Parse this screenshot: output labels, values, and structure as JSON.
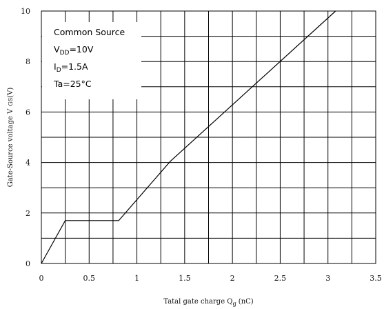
{
  "chart_data": {
    "type": "line",
    "xlabel": "Tatal gate charge  Q",
    "xlabel_sub": "g",
    "xlabel_unit": "  (nC)",
    "ylabel": "Gate-Source voltage  V",
    "ylabel_sub": "GS",
    "ylabel_unit": "(V)",
    "xlim": [
      0,
      3.5
    ],
    "ylim": [
      0,
      10
    ],
    "x_ticks": [
      0,
      0.5,
      1,
      1.5,
      2,
      2.5,
      3,
      3.5
    ],
    "x_tick_labels": [
      "0",
      "0.5",
      "1",
      "1.5",
      "2",
      "2.5",
      "3",
      "3.5"
    ],
    "y_ticks": [
      0,
      2,
      4,
      6,
      8,
      10
    ],
    "y_tick_labels": [
      "0",
      "2",
      "4",
      "6",
      "8",
      "10"
    ],
    "x_grid_step": 0.25,
    "y_grid_step": 1,
    "grid": true,
    "series": [
      {
        "x": [
          0,
          0.25,
          0.81,
          1.35,
          3.08
        ],
        "y": [
          0,
          1.7,
          1.7,
          4.05,
          10
        ]
      }
    ],
    "legend_box": {
      "placement": "top-left",
      "lines": [
        {
          "main": "Common Source",
          "sub": "",
          "rest": ""
        },
        {
          "main": "V",
          "sub": "DD",
          "rest": "=10V"
        },
        {
          "main": "I",
          "sub": "D",
          "rest": "=1.5A"
        },
        {
          "main": "Ta=25",
          "sub": "",
          "rest": "°C"
        }
      ]
    }
  }
}
